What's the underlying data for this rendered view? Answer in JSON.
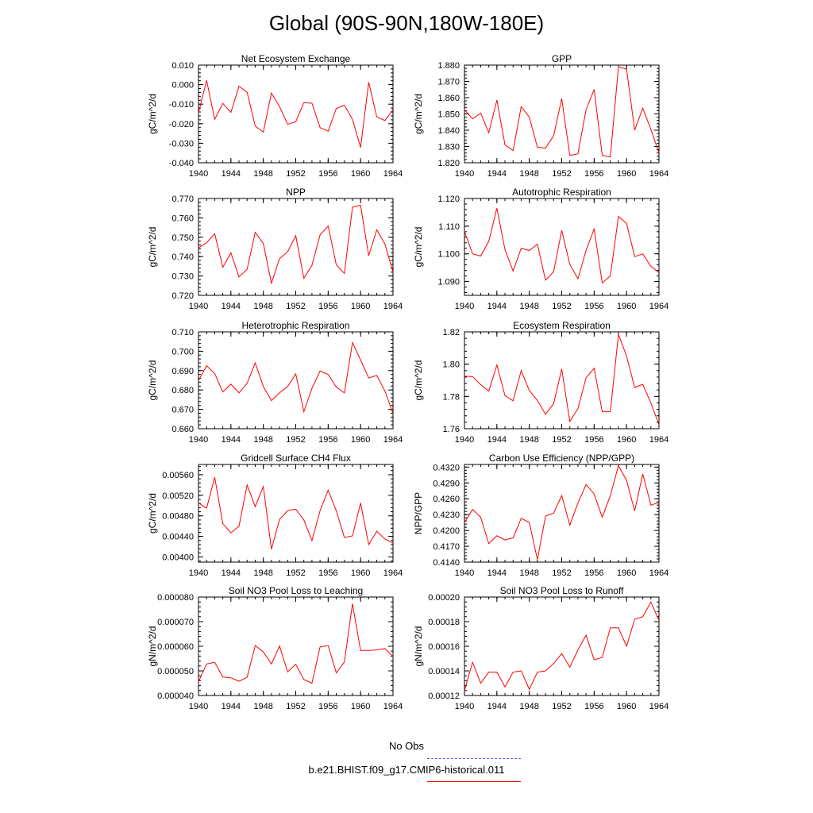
{
  "title": "Global (90S-90N,180W-180E)",
  "legend": {
    "obs_label": "No Obs",
    "obs_color": "#5a5aff",
    "model_label": "b.e21.BHIST.f09_g17.CMIP6-historical.011",
    "model_color": "#ff0000"
  },
  "chart_data": [
    {
      "type": "line",
      "title": "Net Ecosystem Exchange",
      "ylabel": "gC/m^2/d",
      "xlim": [
        1940,
        1964
      ],
      "ylim": [
        -0.04,
        0.01
      ],
      "xticks": [
        "1940",
        "1944",
        "1948",
        "1952",
        "1956",
        "1960",
        "1964"
      ],
      "yticks": [
        "-0.040",
        "-0.030",
        "-0.020",
        "-0.010",
        "0.000",
        "0.010"
      ],
      "x": [
        1940,
        1941,
        1942,
        1943,
        1944,
        1945,
        1946,
        1947,
        1948,
        1949,
        1950,
        1951,
        1952,
        1953,
        1954,
        1955,
        1956,
        1957,
        1958,
        1959,
        1960,
        1961,
        1962,
        1963,
        1964
      ],
      "values": [
        -0.0145,
        0.0022,
        -0.0178,
        -0.0096,
        -0.0142,
        -0.0008,
        -0.0039,
        -0.0212,
        -0.0243,
        -0.0043,
        -0.0112,
        -0.0203,
        -0.019,
        -0.0092,
        -0.0095,
        -0.022,
        -0.0238,
        -0.0122,
        -0.0105,
        -0.0178,
        -0.0322,
        0.0012,
        -0.0165,
        -0.0184,
        -0.0128
      ]
    },
    {
      "type": "line",
      "title": "GPP",
      "ylabel": "gC/m^2/d",
      "xlim": [
        1940,
        1964
      ],
      "ylim": [
        1.82,
        1.88
      ],
      "xticks": [
        "1940",
        "1944",
        "1948",
        "1952",
        "1956",
        "1960",
        "1964"
      ],
      "yticks": [
        "1.820",
        "1.830",
        "1.840",
        "1.850",
        "1.860",
        "1.870",
        "1.880"
      ],
      "x": [
        1940,
        1941,
        1942,
        1943,
        1944,
        1945,
        1946,
        1947,
        1948,
        1949,
        1950,
        1951,
        1952,
        1953,
        1954,
        1955,
        1956,
        1957,
        1958,
        1959,
        1960,
        1961,
        1962,
        1963,
        1964
      ],
      "values": [
        1.8525,
        1.847,
        1.8505,
        1.8385,
        1.8585,
        1.831,
        1.8275,
        1.8545,
        1.848,
        1.8295,
        1.829,
        1.8365,
        1.8595,
        1.8245,
        1.8255,
        1.8525,
        1.865,
        1.8245,
        1.8235,
        1.879,
        1.8775,
        1.84,
        1.8535,
        1.8405,
        1.826
      ]
    },
    {
      "type": "line",
      "title": "NPP",
      "ylabel": "gC/m^2/d",
      "xlim": [
        1940,
        1964
      ],
      "ylim": [
        0.72,
        0.77
      ],
      "xticks": [
        "1940",
        "1944",
        "1948",
        "1952",
        "1956",
        "1960",
        "1964"
      ],
      "yticks": [
        "0.720",
        "0.730",
        "0.740",
        "0.750",
        "0.760",
        "0.770"
      ],
      "x": [
        1940,
        1941,
        1942,
        1943,
        1944,
        1945,
        1946,
        1947,
        1948,
        1949,
        1950,
        1951,
        1952,
        1953,
        1954,
        1955,
        1956,
        1957,
        1958,
        1959,
        1960,
        1961,
        1962,
        1963,
        1964
      ],
      "values": [
        0.7445,
        0.7472,
        0.7518,
        0.7345,
        0.742,
        0.7295,
        0.7335,
        0.7525,
        0.7468,
        0.7263,
        0.739,
        0.7425,
        0.7508,
        0.7288,
        0.7355,
        0.7512,
        0.7558,
        0.7358,
        0.7313,
        0.7655,
        0.7665,
        0.7405,
        0.7538,
        0.7465,
        0.732
      ]
    },
    {
      "type": "line",
      "title": "Autotrophic Respiration",
      "ylabel": "gC/m^2/d",
      "xlim": [
        1940,
        1964
      ],
      "ylim": [
        1.085,
        1.12
      ],
      "xticks": [
        "1940",
        "1944",
        "1948",
        "1952",
        "1956",
        "1960",
        "1964"
      ],
      "yticks": [
        "1.090",
        "1.100",
        "1.110",
        "1.120"
      ],
      "x": [
        1940,
        1941,
        1942,
        1943,
        1944,
        1945,
        1946,
        1947,
        1948,
        1949,
        1950,
        1951,
        1952,
        1953,
        1954,
        1955,
        1956,
        1957,
        1958,
        1959,
        1960,
        1961,
        1962,
        1963,
        1964
      ],
      "values": [
        1.1082,
        1.1,
        1.0992,
        1.1045,
        1.1165,
        1.1015,
        1.0938,
        1.102,
        1.1012,
        1.1035,
        1.0905,
        1.0935,
        1.1085,
        1.0962,
        1.091,
        1.1012,
        1.109,
        1.0895,
        1.092,
        1.1135,
        1.111,
        1.099,
        1.1,
        1.0955,
        1.0932
      ]
    },
    {
      "type": "line",
      "title": "Heterotrophic Respiration",
      "ylabel": "gC/m^2/d",
      "xlim": [
        1940,
        1964
      ],
      "ylim": [
        0.66,
        0.71
      ],
      "xticks": [
        "1940",
        "1944",
        "1948",
        "1952",
        "1956",
        "1960",
        "1964"
      ],
      "yticks": [
        "0.660",
        "0.670",
        "0.680",
        "0.690",
        "0.700",
        "0.710"
      ],
      "x": [
        1940,
        1941,
        1942,
        1943,
        1944,
        1945,
        1946,
        1947,
        1948,
        1949,
        1950,
        1951,
        1952,
        1953,
        1954,
        1955,
        1956,
        1957,
        1958,
        1959,
        1960,
        1961,
        1962,
        1963,
        1964
      ],
      "values": [
        0.6848,
        0.6925,
        0.6885,
        0.679,
        0.683,
        0.6785,
        0.6835,
        0.694,
        0.6818,
        0.6745,
        0.6785,
        0.6818,
        0.6883,
        0.6688,
        0.6808,
        0.6898,
        0.688,
        0.6815,
        0.6785,
        0.7045,
        0.6955,
        0.6862,
        0.6875,
        0.6795,
        0.6678
      ]
    },
    {
      "type": "line",
      "title": "Ecosystem Respiration",
      "ylabel": "gC/m^2/d",
      "xlim": [
        1940,
        1964
      ],
      "ylim": [
        1.76,
        1.82
      ],
      "xticks": [
        "1940",
        "1944",
        "1948",
        "1952",
        "1956",
        "1960",
        "1964"
      ],
      "yticks": [
        "1.76",
        "1.78",
        "1.80",
        "1.82"
      ],
      "x": [
        1940,
        1941,
        1942,
        1943,
        1944,
        1945,
        1946,
        1947,
        1948,
        1949,
        1950,
        1951,
        1952,
        1953,
        1954,
        1955,
        1956,
        1957,
        1958,
        1959,
        1960,
        1961,
        1962,
        1963,
        1964
      ],
      "values": [
        1.7925,
        1.7923,
        1.7873,
        1.7833,
        1.7995,
        1.7805,
        1.7773,
        1.796,
        1.7837,
        1.7775,
        1.769,
        1.7755,
        1.797,
        1.7645,
        1.7725,
        1.7915,
        1.7975,
        1.7705,
        1.7705,
        1.8185,
        1.805,
        1.7855,
        1.7875,
        1.776,
        1.7625
      ]
    },
    {
      "type": "line",
      "title": "Gridcell Surface CH4 Flux",
      "ylabel": "gC/m^2/d",
      "xlim": [
        1940,
        1964
      ],
      "ylim": [
        0.0039,
        0.0058
      ],
      "xticks": [
        "1940",
        "1944",
        "1948",
        "1952",
        "1956",
        "1960",
        "1964"
      ],
      "yticks": [
        "0.00400",
        "0.00440",
        "0.00480",
        "0.00520",
        "0.00560"
      ],
      "x": [
        1940,
        1941,
        1942,
        1943,
        1944,
        1945,
        1946,
        1947,
        1948,
        1949,
        1950,
        1951,
        1952,
        1953,
        1954,
        1955,
        1956,
        1957,
        1958,
        1959,
        1960,
        1961,
        1962,
        1963,
        1964
      ],
      "values": [
        0.00505,
        0.00495,
        0.00555,
        0.00465,
        0.00447,
        0.0046,
        0.0054,
        0.00498,
        0.00537,
        0.00415,
        0.00473,
        0.0049,
        0.00493,
        0.00472,
        0.00432,
        0.0049,
        0.0053,
        0.0049,
        0.00438,
        0.00441,
        0.00505,
        0.00424,
        0.0045,
        0.00435,
        0.00427
      ]
    },
    {
      "type": "line",
      "title": "Carbon Use Efficiency (NPP/GPP)",
      "ylabel": "NPP/GPP",
      "xlim": [
        1940,
        1964
      ],
      "ylim": [
        0.414,
        0.4325
      ],
      "xticks": [
        "1940",
        "1944",
        "1948",
        "1952",
        "1956",
        "1960",
        "1964"
      ],
      "yticks": [
        "0.4140",
        "0.4170",
        "0.4200",
        "0.4230",
        "0.4260",
        "0.4290",
        "0.4320"
      ],
      "x": [
        1940,
        1941,
        1942,
        1943,
        1944,
        1945,
        1946,
        1947,
        1948,
        1949,
        1950,
        1951,
        1952,
        1953,
        1954,
        1955,
        1956,
        1957,
        1958,
        1959,
        1960,
        1961,
        1962,
        1963,
        1964
      ],
      "values": [
        0.4215,
        0.424,
        0.4225,
        0.4175,
        0.419,
        0.4182,
        0.4186,
        0.4223,
        0.4215,
        0.4145,
        0.4227,
        0.4233,
        0.4266,
        0.421,
        0.4252,
        0.4287,
        0.4269,
        0.4225,
        0.4266,
        0.4323,
        0.4295,
        0.4237,
        0.4307,
        0.4248,
        0.4253
      ]
    },
    {
      "type": "line",
      "title": "Soil NO3 Pool Loss to Leaching",
      "ylabel": "gN/m^2/d",
      "xlim": [
        1940,
        1964
      ],
      "ylim": [
        4e-05,
        8e-05
      ],
      "xticks": [
        "1940",
        "1944",
        "1948",
        "1952",
        "1956",
        "1960",
        "1964"
      ],
      "yticks": [
        "0.000040",
        "0.000050",
        "0.000060",
        "0.000070",
        "0.000080"
      ],
      "x": [
        1940,
        1941,
        1942,
        1943,
        1944,
        1945,
        1946,
        1947,
        1948,
        1949,
        1950,
        1951,
        1952,
        1953,
        1954,
        1955,
        1956,
        1957,
        1958,
        1959,
        1960,
        1961,
        1962,
        1963,
        1964
      ],
      "values": [
        4.55e-05,
        5.28e-05,
        5.35e-05,
        4.75e-05,
        4.72e-05,
        4.58e-05,
        4.74e-05,
        6.03e-05,
        5.77e-05,
        5.28e-05,
        6.01e-05,
        4.96e-05,
        5.27e-05,
        4.65e-05,
        4.5e-05,
        5.97e-05,
        6.03e-05,
        4.92e-05,
        5.36e-05,
        7.73e-05,
        5.83e-05,
        5.83e-05,
        5.85e-05,
        5.91e-05,
        5.58e-05
      ]
    },
    {
      "type": "line",
      "title": "Soil NO3 Pool Loss to Runoff",
      "ylabel": "gN/m^2/d",
      "xlim": [
        1940,
        1964
      ],
      "ylim": [
        0.00012,
        0.0002
      ],
      "xticks": [
        "1940",
        "1944",
        "1948",
        "1952",
        "1956",
        "1960",
        "1964"
      ],
      "yticks": [
        "0.00012",
        "0.00014",
        "0.00016",
        "0.00018",
        "0.00020"
      ],
      "x": [
        1940,
        1941,
        1942,
        1943,
        1944,
        1945,
        1946,
        1947,
        1948,
        1949,
        1950,
        1951,
        1952,
        1953,
        1954,
        1955,
        1956,
        1957,
        1958,
        1959,
        1960,
        1961,
        1962,
        1963,
        1964
      ],
      "values": [
        0.000124,
        0.000147,
        0.00013,
        0.000139,
        0.000139,
        0.000127,
        0.000139,
        0.00014,
        0.000125,
        0.000139,
        0.00014,
        0.000146,
        0.000154,
        0.000143,
        0.000157,
        0.000169,
        0.000149,
        0.000151,
        0.000175,
        0.000175,
        0.00016,
        0.000182,
        0.000184,
        0.000196,
        0.000181
      ]
    }
  ]
}
